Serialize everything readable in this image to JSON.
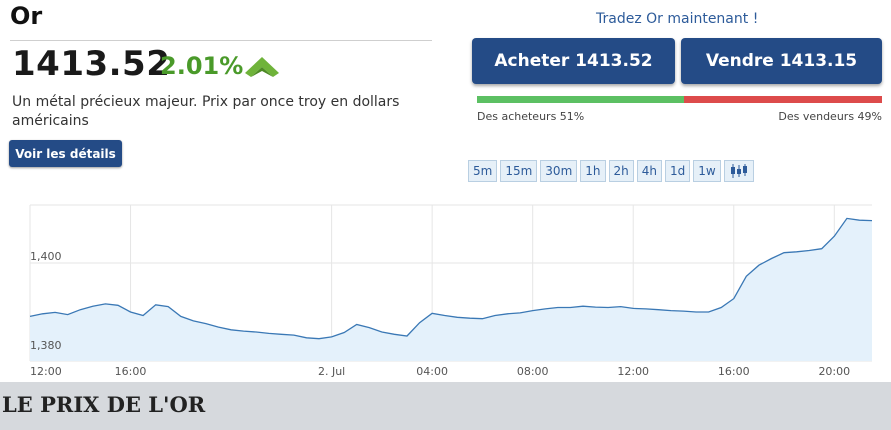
{
  "instrument": {
    "title": "Or",
    "price": "1413.52",
    "change_pct": "2.01%",
    "trend": "up",
    "description": "Un métal précieux majeur. Prix par once troy en dollars américains",
    "details_label": "Voir les détails"
  },
  "trade": {
    "cta": "Tradez Or maintenant !",
    "buy_label": "Acheter 1413.52",
    "sell_label": "Vendre 1413.15",
    "buyers_label": "Des acheteurs 51%",
    "sellers_label": "Des vendeurs 49%",
    "buyers_pct": 51,
    "sellers_pct": 49
  },
  "timeframes": [
    "5m",
    "15m",
    "30m",
    "1h",
    "2h",
    "4h",
    "1d",
    "1w"
  ],
  "colors": {
    "brand": "#244b86",
    "change": "#4a9a2a",
    "buyers": "#5cc063",
    "sellers": "#dd4b4b",
    "line": "#3a78b5",
    "fill": "#e4f1fb"
  },
  "chart_data": {
    "type": "area",
    "x_ticks": [
      "12:00",
      "16:00",
      "2. Jul",
      "04:00",
      "08:00",
      "12:00",
      "16:00",
      "20:00"
    ],
    "y_ticks": [
      "1,400",
      "1,380"
    ],
    "ylim": [
      1378,
      1413
    ],
    "grid": true,
    "x_unit": "hours since 12:00",
    "xlim": [
      0,
      33.5
    ],
    "points": [
      [
        0,
        1388.0
      ],
      [
        0.5,
        1388.6
      ],
      [
        1,
        1388.9
      ],
      [
        1.5,
        1388.4
      ],
      [
        2,
        1389.5
      ],
      [
        2.5,
        1390.3
      ],
      [
        3,
        1390.8
      ],
      [
        3.5,
        1390.5
      ],
      [
        4,
        1389.0
      ],
      [
        4.5,
        1388.2
      ],
      [
        5,
        1390.6
      ],
      [
        5.5,
        1390.2
      ],
      [
        6,
        1388.0
      ],
      [
        6.5,
        1387.0
      ],
      [
        7,
        1386.4
      ],
      [
        7.5,
        1385.6
      ],
      [
        8,
        1385.0
      ],
      [
        8.5,
        1384.7
      ],
      [
        9,
        1384.5
      ],
      [
        9.5,
        1384.2
      ],
      [
        10,
        1384.0
      ],
      [
        10.5,
        1383.8
      ],
      [
        11,
        1383.2
      ],
      [
        11.5,
        1383.0
      ],
      [
        12,
        1383.4
      ],
      [
        12.5,
        1384.4
      ],
      [
        13,
        1386.2
      ],
      [
        13.5,
        1385.5
      ],
      [
        14,
        1384.5
      ],
      [
        14.5,
        1384.0
      ],
      [
        15,
        1383.6
      ],
      [
        15.5,
        1386.6
      ],
      [
        16,
        1388.7
      ],
      [
        16.5,
        1388.2
      ],
      [
        17,
        1387.8
      ],
      [
        17.5,
        1387.6
      ],
      [
        18,
        1387.5
      ],
      [
        18.5,
        1388.2
      ],
      [
        19,
        1388.6
      ],
      [
        19.5,
        1388.8
      ],
      [
        20,
        1389.3
      ],
      [
        20.5,
        1389.7
      ],
      [
        21,
        1390.0
      ],
      [
        21.5,
        1390.0
      ],
      [
        22,
        1390.3
      ],
      [
        22.5,
        1390.1
      ],
      [
        23,
        1390.0
      ],
      [
        23.5,
        1390.2
      ],
      [
        24,
        1389.8
      ],
      [
        24.5,
        1389.7
      ],
      [
        25,
        1389.5
      ],
      [
        25.5,
        1389.3
      ],
      [
        26,
        1389.2
      ],
      [
        26.5,
        1389.0
      ],
      [
        27,
        1389.0
      ],
      [
        27.5,
        1390.0
      ],
      [
        28,
        1392.0
      ],
      [
        28.5,
        1397.0
      ],
      [
        29,
        1399.5
      ],
      [
        29.5,
        1401.0
      ],
      [
        30,
        1402.3
      ],
      [
        30.5,
        1402.5
      ],
      [
        31,
        1402.8
      ],
      [
        31.5,
        1403.2
      ],
      [
        32,
        1406.0
      ],
      [
        32.5,
        1410.0
      ],
      [
        33,
        1409.6
      ],
      [
        33.5,
        1409.5
      ]
    ]
  },
  "banner": {
    "text": "LE PRIX DE L'OR"
  }
}
